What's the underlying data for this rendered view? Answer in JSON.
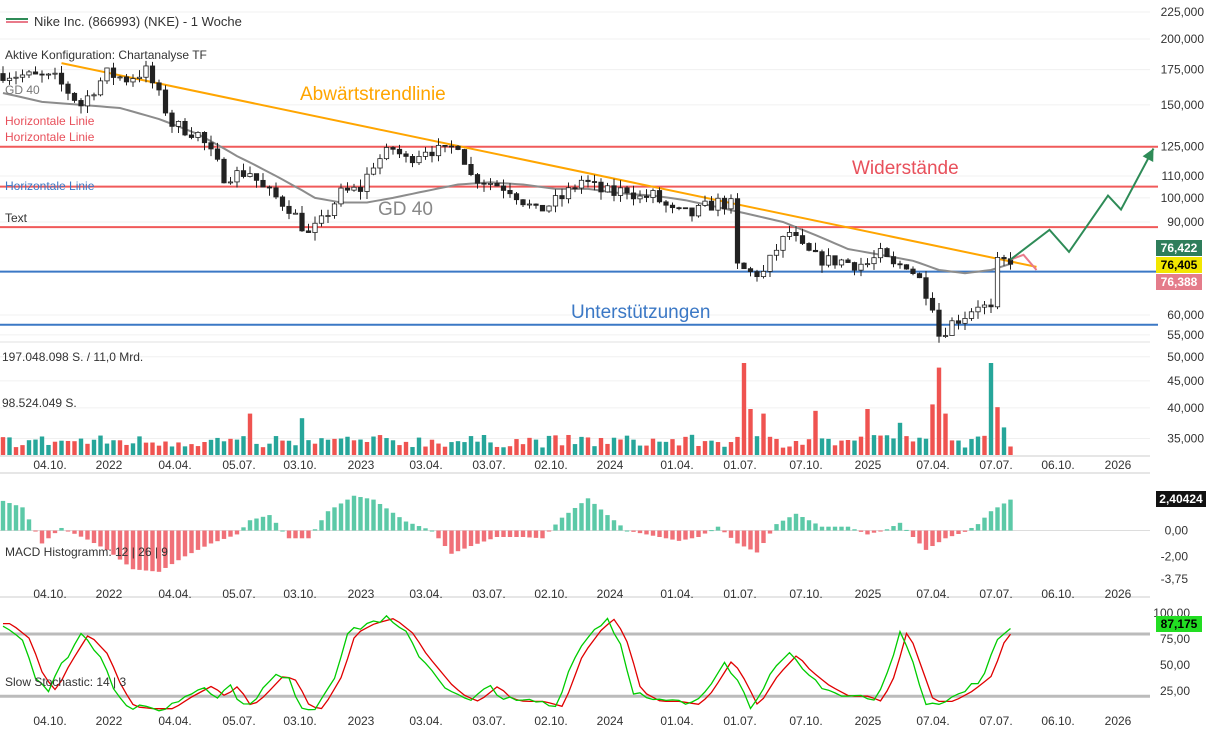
{
  "header": {
    "legend": "Nike Inc. (866993) (NKE) - 1 Woche",
    "config": "Aktive Konfiguration: Chartanalyse TF"
  },
  "labels": {
    "gd_short": "GD 40",
    "gd_curve": "GD 40",
    "horizontal_1": "Horizontale Linie",
    "horizontal_2": "Horizontale Linie",
    "horizontal_3": "Horizontale Linie",
    "text": "Text",
    "trend": "Abwärtstrendlinie",
    "resist": "Widerstände",
    "support": "Unterstützungen",
    "vol_max": "197.048.098 S. / 11,0 Mrd.",
    "vol_mid": "98.524.049 S.",
    "macd": "MACD Histogramm: 12 | 26 | 9",
    "stoch": "Slow Stochastic: 14 | 3"
  },
  "badges": {
    "upper": "76,422",
    "current": "76,405",
    "lower": "76,388",
    "macd": "2,40424",
    "stoch": "87,175"
  },
  "colors": {
    "up": "#26a69a",
    "down": "#ef5350",
    "trend": "#ffa500",
    "resistance": "#f05a5a",
    "support": "#3b78c5",
    "ma": "#8c8c8c",
    "projection": "#2e8b57",
    "stoch_k": "#00cc00",
    "stoch_d": "#e00000",
    "annotation_trend": "#ffa500",
    "annotation_resist": "#e8505b",
    "annotation_support": "#3b78c5"
  },
  "chart_data": {
    "type": "candlestick",
    "title": "Nike Inc. (866993) (NKE) - 1 Woche",
    "scale": "logarithmic",
    "x_labels": [
      "04.10.",
      "2022",
      "04.04.",
      "05.07.",
      "03.10.",
      "2023",
      "03.04.",
      "03.07.",
      "02.10.",
      "2024",
      "01.04.",
      "01.07.",
      "07.10.",
      "2025",
      "07.04.",
      "07.07.",
      "06.10.",
      "2026"
    ],
    "price_axis": [
      "225,000",
      "200,000",
      "175,000",
      "150,000",
      "125,000",
      "110,000",
      "100,000",
      "90,000",
      "60,000",
      "55,000",
      "50,000",
      "45,000",
      "40,000",
      "35,000"
    ],
    "price_axis_values": [
      225,
      200,
      175,
      150,
      125,
      110,
      100,
      90,
      60,
      55,
      50,
      45,
      40,
      35
    ],
    "price_range": [
      33,
      235
    ],
    "price_path": [
      [
        0,
        172
      ],
      [
        8,
        168
      ],
      [
        12,
        150
      ],
      [
        16,
        172
      ],
      [
        19,
        168
      ],
      [
        22,
        174
      ],
      [
        26,
        138
      ],
      [
        30,
        132
      ],
      [
        34,
        110
      ],
      [
        38,
        112
      ],
      [
        40,
        104
      ],
      [
        44,
        96
      ],
      [
        47,
        85
      ],
      [
        49,
        90
      ],
      [
        52,
        102
      ],
      [
        55,
        104
      ],
      [
        57,
        116
      ],
      [
        60,
        124
      ],
      [
        62,
        118
      ],
      [
        65,
        124
      ],
      [
        68,
        122
      ],
      [
        70,
        127
      ],
      [
        72,
        110
      ],
      [
        75,
        107
      ],
      [
        78,
        104
      ],
      [
        80,
        99
      ],
      [
        82,
        94
      ],
      [
        86,
        100
      ],
      [
        89,
        108
      ],
      [
        92,
        103
      ],
      [
        94,
        102
      ],
      [
        96,
        104
      ],
      [
        98,
        100
      ],
      [
        100,
        101
      ],
      [
        103,
        94
      ],
      [
        106,
        93
      ],
      [
        108,
        96
      ],
      [
        110,
        98
      ],
      [
        112,
        97
      ],
      [
        113,
        74
      ],
      [
        115,
        72
      ],
      [
        117,
        72
      ],
      [
        119,
        80
      ],
      [
        121,
        86
      ],
      [
        123,
        80
      ],
      [
        125,
        77
      ],
      [
        127,
        76
      ],
      [
        129,
        76
      ],
      [
        131,
        75
      ],
      [
        133,
        75
      ],
      [
        135,
        78
      ],
      [
        137,
        74
      ],
      [
        139,
        75
      ],
      [
        141,
        70
      ],
      [
        143,
        63
      ],
      [
        144,
        55
      ],
      [
        146,
        58
      ],
      [
        148,
        60
      ],
      [
        150,
        63
      ],
      [
        152,
        61
      ],
      [
        153,
        75
      ],
      [
        155,
        76.4
      ]
    ],
    "highlights": [
      [
        2,
        -3,
        8
      ],
      [
        93,
        8,
        10
      ],
      [
        110,
        4,
        8
      ],
      [
        125,
        -2,
        6
      ]
    ],
    "ma40": [
      [
        0,
        158
      ],
      [
        6,
        152
      ],
      [
        12,
        150
      ],
      [
        18,
        148
      ],
      [
        24,
        141
      ],
      [
        30,
        132
      ],
      [
        36,
        120
      ],
      [
        42,
        110
      ],
      [
        48,
        100
      ],
      [
        52,
        98
      ],
      [
        56,
        98
      ],
      [
        60,
        100
      ],
      [
        65,
        103
      ],
      [
        70,
        106
      ],
      [
        75,
        107
      ],
      [
        80,
        106
      ],
      [
        85,
        104
      ],
      [
        90,
        104
      ],
      [
        95,
        102
      ],
      [
        100,
        101
      ],
      [
        105,
        99
      ],
      [
        110,
        96
      ],
      [
        115,
        93
      ],
      [
        120,
        90
      ],
      [
        125,
        85
      ],
      [
        130,
        80
      ],
      [
        135,
        78
      ],
      [
        140,
        76
      ],
      [
        144,
        73
      ],
      [
        148,
        72
      ],
      [
        152,
        73
      ],
      [
        155,
        75
      ]
    ],
    "lines": {
      "resistance": [
        125,
        105,
        88
      ],
      "support": [
        72.5,
        57.5
      ],
      "trendline": {
        "from": [
          9,
          180
        ],
        "to": [
          159,
          74
        ]
      },
      "projection": [
        [
          155,
          76.4
        ],
        [
          161,
          87
        ],
        [
          164,
          79
        ],
        [
          170,
          101
        ],
        [
          172,
          95
        ],
        [
          177,
          124
        ]
      ],
      "projection_pullback": [
        [
          155,
          76.4
        ],
        [
          157,
          78
        ],
        [
          159,
          73
        ]
      ]
    },
    "volume": {
      "label_max": "197.048.098 S. / 11,0 Mrd.",
      "label_mid": "98.524.049 S.",
      "max": 197048098,
      "spikes": [
        [
          38,
          0.45
        ],
        [
          46,
          0.4
        ],
        [
          114,
          1.0
        ],
        [
          115,
          0.5
        ],
        [
          117,
          0.45
        ],
        [
          125,
          0.48
        ],
        [
          133,
          0.5
        ],
        [
          138,
          0.35
        ],
        [
          143,
          0.55
        ],
        [
          144,
          0.95
        ],
        [
          145,
          0.45
        ],
        [
          152,
          1.0
        ],
        [
          153,
          0.52
        ],
        [
          154,
          0.3
        ]
      ]
    },
    "macd": {
      "label": "MACD Histogramm: 12 | 26 | 9",
      "axis": [
        "2,40424",
        "0,00",
        "-2,00",
        "-3,75"
      ],
      "axis_values": [
        2.40424,
        0,
        -2.0,
        -3.75
      ],
      "range": [
        -4.3,
        3.3
      ],
      "keypoints": [
        [
          0,
          2.3
        ],
        [
          3,
          1.8
        ],
        [
          6,
          -1.0
        ],
        [
          9,
          0.2
        ],
        [
          13,
          -0.7
        ],
        [
          16,
          -1.5
        ],
        [
          20,
          -3.0
        ],
        [
          24,
          -3.2
        ],
        [
          28,
          -2.0
        ],
        [
          32,
          -1.0
        ],
        [
          36,
          -0.3
        ],
        [
          38,
          0.8
        ],
        [
          41,
          1.2
        ],
        [
          44,
          -0.6
        ],
        [
          47,
          -0.6
        ],
        [
          50,
          1.5
        ],
        [
          54,
          2.7
        ],
        [
          57,
          2.4
        ],
        [
          62,
          0.7
        ],
        [
          66,
          0.0
        ],
        [
          69,
          -1.8
        ],
        [
          72,
          -1.2
        ],
        [
          76,
          -0.5
        ],
        [
          80,
          -0.5
        ],
        [
          83,
          -0.6
        ],
        [
          86,
          1.0
        ],
        [
          90,
          2.5
        ],
        [
          93,
          1.2
        ],
        [
          96,
          0.0
        ],
        [
          100,
          -0.4
        ],
        [
          104,
          -0.8
        ],
        [
          107,
          -0.5
        ],
        [
          110,
          0.3
        ],
        [
          113,
          -1.0
        ],
        [
          116,
          -1.7
        ],
        [
          119,
          0.5
        ],
        [
          122,
          1.3
        ],
        [
          126,
          0.3
        ],
        [
          130,
          0.3
        ],
        [
          133,
          -0.3
        ],
        [
          136,
          0.1
        ],
        [
          138,
          0.6
        ],
        [
          140,
          -0.5
        ],
        [
          142,
          -1.5
        ],
        [
          145,
          -0.6
        ],
        [
          148,
          -0.1
        ],
        [
          150,
          0.5
        ],
        [
          152,
          1.5
        ],
        [
          155,
          2.4
        ]
      ]
    },
    "stochastic": {
      "label": "Slow Stochastic: 14 | 3",
      "axis": [
        "100,00",
        "75,00",
        "50,00",
        "25,00"
      ],
      "axis_values": [
        100,
        75,
        50,
        25
      ],
      "levels": [
        80,
        20
      ],
      "range": [
        0,
        105
      ],
      "keypoints": [
        [
          0,
          90
        ],
        [
          3,
          75
        ],
        [
          5,
          40
        ],
        [
          7,
          25
        ],
        [
          9,
          50
        ],
        [
          12,
          80
        ],
        [
          15,
          60
        ],
        [
          17,
          30
        ],
        [
          19,
          10
        ],
        [
          22,
          8
        ],
        [
          25,
          8
        ],
        [
          28,
          20
        ],
        [
          31,
          30
        ],
        [
          33,
          20
        ],
        [
          35,
          30
        ],
        [
          37,
          10
        ],
        [
          39,
          20
        ],
        [
          42,
          40
        ],
        [
          44,
          35
        ],
        [
          46,
          10
        ],
        [
          48,
          8
        ],
        [
          51,
          40
        ],
        [
          53,
          80
        ],
        [
          56,
          90
        ],
        [
          59,
          95
        ],
        [
          62,
          80
        ],
        [
          64,
          60
        ],
        [
          66,
          45
        ],
        [
          68,
          30
        ],
        [
          70,
          20
        ],
        [
          72,
          15
        ],
        [
          75,
          30
        ],
        [
          77,
          18
        ],
        [
          79,
          15
        ],
        [
          82,
          15
        ],
        [
          85,
          10
        ],
        [
          88,
          60
        ],
        [
          91,
          85
        ],
        [
          93,
          95
        ],
        [
          95,
          70
        ],
        [
          97,
          25
        ],
        [
          100,
          15
        ],
        [
          103,
          15
        ],
        [
          106,
          12
        ],
        [
          108,
          25
        ],
        [
          111,
          55
        ],
        [
          113,
          35
        ],
        [
          115,
          10
        ],
        [
          118,
          40
        ],
        [
          121,
          60
        ],
        [
          123,
          45
        ],
        [
          126,
          30
        ],
        [
          129,
          20
        ],
        [
          132,
          20
        ],
        [
          134,
          15
        ],
        [
          136,
          40
        ],
        [
          138,
          85
        ],
        [
          140,
          50
        ],
        [
          142,
          15
        ],
        [
          145,
          15
        ],
        [
          148,
          25
        ],
        [
          151,
          40
        ],
        [
          153,
          75
        ],
        [
          155,
          87
        ]
      ]
    }
  }
}
